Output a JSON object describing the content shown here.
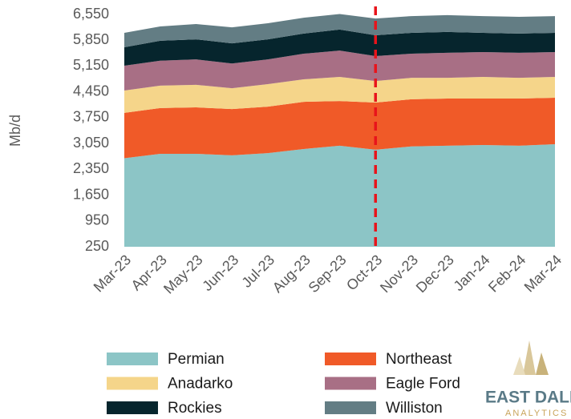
{
  "chart_data": {
    "type": "stacked_area",
    "y_label": "Mb/d",
    "categories": [
      "Mar-23",
      "Apr-23",
      "May-23",
      "Jun-23",
      "Jul-23",
      "Aug-23",
      "Sep-23",
      "Oct-23",
      "Nov-23",
      "Dec-23",
      "Jan-24",
      "Feb-24",
      "Mar-24"
    ],
    "series": [
      {
        "name": "Permian",
        "color": "#8cc5c6",
        "values": [
          2650,
          2770,
          2770,
          2730,
          2790,
          2900,
          2990,
          2880,
          2970,
          2990,
          3010,
          2990,
          3030
        ]
      },
      {
        "name": "Northeast",
        "color": "#f05a28",
        "values": [
          1230,
          1240,
          1260,
          1255,
          1260,
          1280,
          1210,
          1280,
          1280,
          1280,
          1260,
          1280,
          1260
        ]
      },
      {
        "name": "Anadarko",
        "color": "#f5d58a",
        "values": [
          605,
          610,
          610,
          565,
          610,
          610,
          655,
          585,
          580,
          560,
          585,
          560,
          565
        ]
      },
      {
        "name": "Eagle Ford",
        "color": "#a86f85",
        "values": [
          675,
          675,
          690,
          670,
          670,
          695,
          715,
          675,
          655,
          680,
          675,
          680,
          675
        ]
      },
      {
        "name": "Rockies",
        "color": "#06252d",
        "values": [
          500,
          540,
          545,
          545,
          545,
          545,
          570,
          565,
          565,
          565,
          520,
          520,
          520
        ]
      },
      {
        "name": "Williston",
        "color": "#637d84",
        "values": [
          390,
          390,
          415,
          435,
          435,
          430,
          420,
          455,
          455,
          455,
          455,
          455,
          455
        ]
      }
    ],
    "ylim": [
      250,
      6550
    ],
    "yticks": [
      250,
      950,
      {
        "value": 1650,
        "label": "1,650"
      },
      {
        "value": 2350,
        "label": "2,350"
      },
      {
        "value": 3050,
        "label": "3,050"
      },
      {
        "value": 3750,
        "label": "3,750"
      },
      {
        "value": 4450,
        "label": "4,450"
      },
      {
        "value": 5150,
        "label": "5,150"
      },
      {
        "value": 5850,
        "label": "5,850"
      },
      {
        "value": 6550,
        "label": "6,550"
      }
    ],
    "grid": false,
    "legend": "bottom",
    "vline": {
      "x": "Oct-23",
      "color": "#e8141b",
      "style": "dashed"
    },
    "logo": {
      "name": "EAST DALEY",
      "tagline": "ANALYTICS"
    }
  }
}
